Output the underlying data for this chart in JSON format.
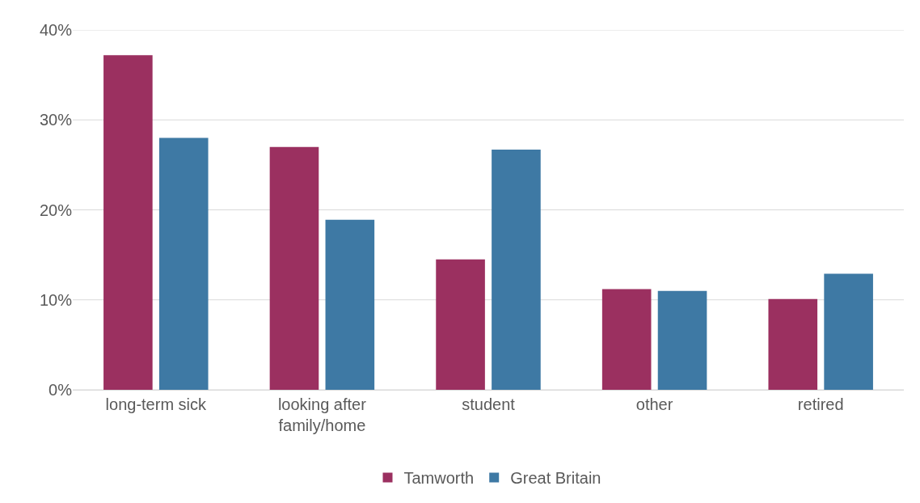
{
  "chart_data": {
    "type": "bar",
    "categories": [
      "long-term sick",
      "looking after family/home",
      "student",
      "other",
      "retired"
    ],
    "series": [
      {
        "name": "Tamworth",
        "color": "#9b3060",
        "values": [
          37.2,
          27.0,
          14.5,
          11.2,
          10.1
        ]
      },
      {
        "name": "Great Britain",
        "color": "#3e79a4",
        "values": [
          28.0,
          18.9,
          26.7,
          11.0,
          12.9
        ]
      }
    ],
    "ylim": [
      0,
      40
    ],
    "yticks": [
      {
        "value": 0,
        "label": "0%"
      },
      {
        "value": 10,
        "label": "10%"
      },
      {
        "value": 20,
        "label": "20%"
      },
      {
        "value": 30,
        "label": "30%"
      },
      {
        "value": 40,
        "label": "40%"
      }
    ],
    "grid": "y",
    "legend": "bottom"
  }
}
